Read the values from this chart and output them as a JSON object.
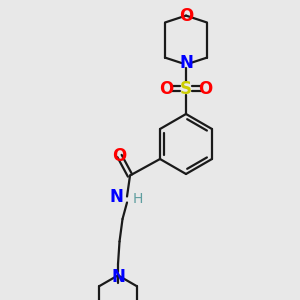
{
  "bg_color": "#e8e8e8",
  "bond_color": "#1a1a1a",
  "N_color": "#0000ff",
  "O_color": "#ff0000",
  "S_color": "#cccc00",
  "H_color": "#5f9ea0",
  "figsize": [
    3.0,
    3.0
  ],
  "dpi": 100,
  "xlim": [
    0,
    10
  ],
  "ylim": [
    0,
    10
  ]
}
